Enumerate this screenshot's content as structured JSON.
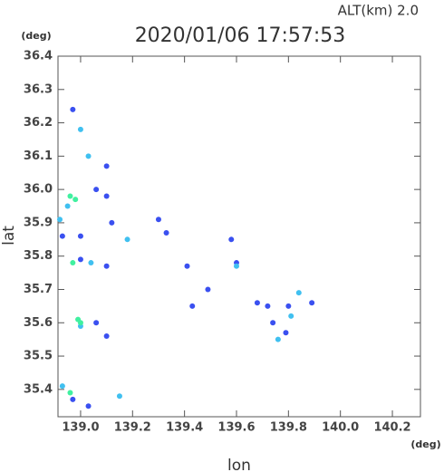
{
  "chart_data": {
    "type": "scatter",
    "title": "2020/01/06 17:57:53",
    "subtitle": "ALT(km) 2.0",
    "x_label": "lon",
    "y_label": "lat",
    "x_unit": "(deg)",
    "y_unit": "(deg)",
    "xlim": [
      138.913,
      140.308
    ],
    "ylim": [
      35.318,
      36.4
    ],
    "xticks": [
      {
        "value": 139.0,
        "label": "139.0"
      },
      139.2,
      139.4,
      139.6,
      139.8,
      {
        "value": 140.0,
        "label": "140.0"
      },
      140.2
    ],
    "yticks": [
      35.4,
      35.5,
      35.6,
      35.7,
      35.8,
      35.9,
      {
        "value": 36.0,
        "label": "36.0"
      },
      36.1,
      36.2,
      36.3,
      36.4
    ],
    "series": [
      {
        "color": "#3a50f0",
        "x": [
          138.97,
          139.1,
          139.06,
          139.1,
          139.3,
          139.12,
          139.0,
          138.93,
          139.33,
          139.58,
          139.41,
          139.6,
          139.0,
          139.1,
          139.49,
          139.43,
          139.68,
          139.72,
          139.8,
          139.89,
          139.06,
          139.1,
          139.79,
          139.74,
          138.97,
          139.03
        ],
        "y": [
          36.24,
          36.07,
          36.0,
          35.98,
          35.91,
          35.9,
          35.86,
          35.86,
          35.87,
          35.85,
          35.77,
          35.78,
          35.79,
          35.77,
          35.7,
          35.65,
          35.66,
          35.65,
          35.65,
          35.66,
          35.6,
          35.56,
          35.57,
          35.6,
          35.37,
          35.35
        ]
      },
      {
        "color": "#40c0f0",
        "x": [
          139.0,
          138.95,
          138.92,
          139.03,
          139.18,
          139.04,
          139.6,
          139.84,
          139.81,
          139.76,
          139.0,
          139.15,
          138.93
        ],
        "y": [
          36.18,
          35.95,
          35.91,
          36.1,
          35.85,
          35.78,
          35.77,
          35.69,
          35.62,
          35.55,
          35.59,
          35.38,
          35.41
        ]
      },
      {
        "color": "#40f0a0",
        "x": [
          138.96,
          138.98,
          138.97,
          138.99,
          139.0,
          138.96
        ],
        "y": [
          35.98,
          35.97,
          35.78,
          35.61,
          35.6,
          35.39
        ]
      }
    ]
  }
}
